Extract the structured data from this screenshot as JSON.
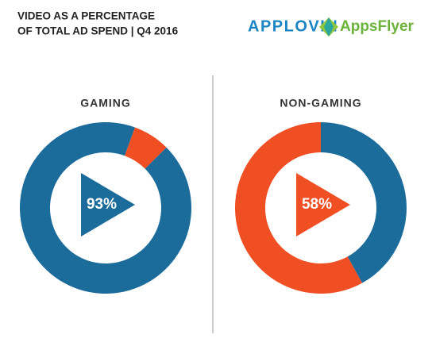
{
  "header": {
    "title": [
      "VIDEO AS A PERCENTAGE",
      "OF TOTAL AD SPEND | Q4 2016"
    ],
    "logos": [
      "APPLOVIN",
      "AppsFlyer"
    ]
  },
  "chart_data": [
    {
      "type": "donut",
      "title": "GAMING",
      "values": [
        7,
        93
      ],
      "value_labels": [
        null,
        "93%"
      ],
      "colors": [
        "#f04e23",
        "#1b6b9b"
      ]
    },
    {
      "type": "donut",
      "title": "NON-GAMING",
      "values": [
        42,
        58
      ],
      "value_labels": [
        null,
        "58%"
      ],
      "colors": [
        "#1b6b9b",
        "#f04e23"
      ]
    }
  ]
}
